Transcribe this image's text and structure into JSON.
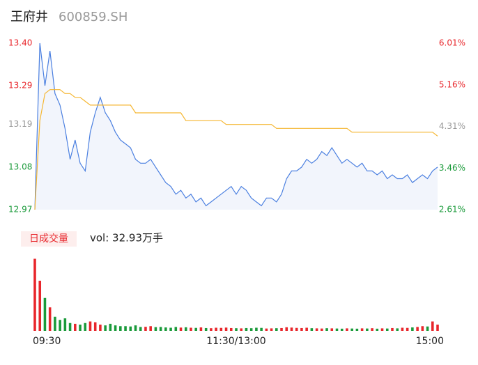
{
  "chart_data": [
    {
      "type": "line",
      "title": "王府井",
      "subtitle": "600859.SH",
      "categories": [
        "09:30",
        null,
        null,
        null,
        null,
        null,
        null,
        null,
        null,
        null,
        null,
        null,
        null,
        null,
        null,
        null,
        null,
        null,
        null,
        null,
        null,
        null,
        null,
        null,
        null,
        null,
        null,
        null,
        null,
        null,
        null,
        null,
        null,
        null,
        null,
        null,
        null,
        null,
        null,
        null,
        "11:30/13:00",
        null,
        null,
        null,
        null,
        null,
        null,
        null,
        null,
        null,
        null,
        null,
        null,
        null,
        null,
        null,
        null,
        null,
        null,
        null,
        null,
        null,
        null,
        null,
        null,
        null,
        null,
        null,
        null,
        null,
        null,
        null,
        null,
        null,
        null,
        null,
        null,
        null,
        null,
        null,
        "15:00"
      ],
      "series": [
        {
          "color": "#4a7fe0",
          "area_color": "#f2f5fc",
          "values": [
            12.97,
            13.4,
            13.29,
            13.38,
            13.27,
            13.24,
            13.18,
            13.1,
            13.15,
            13.09,
            13.07,
            13.17,
            13.22,
            13.26,
            13.22,
            13.2,
            13.17,
            13.15,
            13.14,
            13.13,
            13.1,
            13.09,
            13.09,
            13.1,
            13.08,
            13.06,
            13.04,
            13.03,
            13.01,
            13.02,
            13.0,
            13.01,
            12.99,
            13.0,
            12.98,
            12.99,
            13.0,
            13.01,
            13.02,
            13.03,
            13.01,
            13.03,
            13.02,
            13.0,
            12.99,
            12.98,
            13.0,
            13.0,
            12.99,
            13.01,
            13.05,
            13.07,
            13.07,
            13.08,
            13.1,
            13.09,
            13.1,
            13.12,
            13.11,
            13.13,
            13.11,
            13.09,
            13.1,
            13.09,
            13.08,
            13.09,
            13.07,
            13.07,
            13.06,
            13.07,
            13.05,
            13.06,
            13.05,
            13.05,
            13.06,
            13.04,
            13.05,
            13.06,
            13.05,
            13.07,
            13.08
          ]
        },
        {
          "color": "#f5b630",
          "values": [
            12.97,
            13.2,
            13.27,
            13.28,
            13.28,
            13.28,
            13.27,
            13.27,
            13.26,
            13.26,
            13.25,
            13.24,
            13.24,
            13.24,
            13.24,
            13.24,
            13.24,
            13.24,
            13.24,
            13.24,
            13.22,
            13.22,
            13.22,
            13.22,
            13.22,
            13.22,
            13.22,
            13.22,
            13.22,
            13.22,
            13.2,
            13.2,
            13.2,
            13.2,
            13.2,
            13.2,
            13.2,
            13.2,
            13.19,
            13.19,
            13.19,
            13.19,
            13.19,
            13.19,
            13.19,
            13.19,
            13.19,
            13.19,
            13.18,
            13.18,
            13.18,
            13.18,
            13.18,
            13.18,
            13.18,
            13.18,
            13.18,
            13.18,
            13.18,
            13.18,
            13.18,
            13.18,
            13.18,
            13.17,
            13.17,
            13.17,
            13.17,
            13.17,
            13.17,
            13.17,
            13.17,
            13.17,
            13.17,
            13.17,
            13.17,
            13.17,
            13.17,
            13.17,
            13.17,
            13.17,
            13.16
          ]
        }
      ],
      "ylim": [
        12.97,
        13.4
      ],
      "yticks": [
        {
          "value": 13.4,
          "label": "13.40"
        },
        {
          "value": 13.29,
          "label": "13.29"
        },
        {
          "value": 13.19,
          "label": "13.19"
        },
        {
          "value": 13.08,
          "label": "13.08"
        },
        {
          "value": 12.97,
          "label": "12.97"
        }
      ],
      "y2lim": [
        2.61,
        6.01
      ],
      "y2ticks": [
        {
          "value": 6.01,
          "label": "6.01%"
        },
        {
          "value": 5.16,
          "label": "5.16%"
        },
        {
          "value": 4.31,
          "label": "4.31%"
        },
        {
          "value": 3.46,
          "label": "3.46%"
        },
        {
          "value": 2.61,
          "label": "2.61%"
        }
      ],
      "up_color": "#e8262b",
      "down_color": "#1a9a3a",
      "flat_color": "#999999"
    },
    {
      "type": "bar",
      "title": "日成交量",
      "subtitle": "vol: 32.93万手",
      "values": [
        46000,
        32000,
        21000,
        15000,
        9000,
        7000,
        8000,
        5000,
        4500,
        4000,
        5000,
        6000,
        5500,
        4000,
        3500,
        4500,
        3500,
        3000,
        3000,
        2800,
        3500,
        2500,
        2600,
        3000,
        2400,
        2500,
        2200,
        2000,
        2500,
        2100,
        2300,
        2000,
        1900,
        2200,
        1800,
        1700,
        2000,
        1900,
        2100,
        1800,
        1700,
        1600,
        1800,
        1700,
        2000,
        1900,
        1500,
        1600,
        1700,
        1800,
        2300,
        2100,
        1900,
        1800,
        2000,
        1700,
        1600,
        1500,
        1700,
        1600,
        1500,
        1400,
        1600,
        1500,
        1400,
        1600,
        1500,
        1700,
        1400,
        1600,
        1500,
        1800,
        1600,
        2000,
        1900,
        2200,
        2500,
        3000,
        2800,
        6000,
        4000
      ],
      "ylim": [
        0,
        48000
      ]
    }
  ]
}
